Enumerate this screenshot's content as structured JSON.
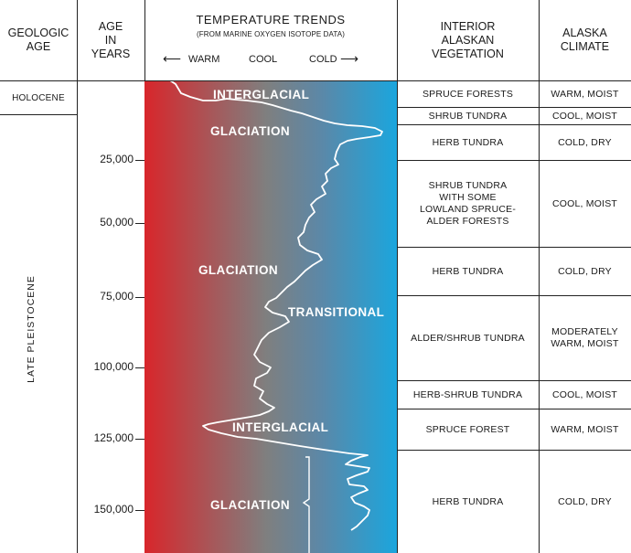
{
  "headers": {
    "geologic_age": [
      "GEOLOGIC",
      "AGE"
    ],
    "age": [
      "AGE",
      "IN",
      "YEARS"
    ],
    "temperature": {
      "title": "TEMPERATURE TRENDS",
      "subtitle": "(FROM MARINE OXYGEN ISOTOPE DATA)",
      "warm": "WARM",
      "cool": "COOL",
      "cold": "COLD",
      "warm_arrow": "⟵",
      "cold_arrow": "⟶"
    },
    "vegetation": [
      "INTERIOR",
      "ALASKAN",
      "VEGETATION"
    ],
    "climate": [
      "ALASKA",
      "CLIMATE"
    ]
  },
  "geologic_ages": {
    "holocene": "HOLOCENE",
    "late_pleistocene": "LATE PLEISTOCENE"
  },
  "age_ticks": [
    {
      "label": "25,000",
      "years": 25000
    },
    {
      "label": "50,000",
      "years": 50000
    },
    {
      "label": "75,000",
      "years": 75000
    },
    {
      "label": "100,000",
      "years": 100000
    },
    {
      "label": "125,000",
      "years": 125000
    },
    {
      "label": "150,000",
      "years": 150000
    }
  ],
  "temperature_bands": {
    "interglacial_top": "INTERGLACIAL",
    "glaciation_1": "GLACIATION",
    "glaciation_2": "GLACIATION",
    "transitional": "TRANSITIONAL",
    "interglacial_mid": "INTERGLACIAL",
    "glaciation_3": "GLACIATION"
  },
  "vegetation": [
    "SPRUCE FORESTS",
    "SHRUB TUNDRA",
    "HERB TUNDRA",
    [
      "SHRUB TUNDRA",
      "WITH SOME",
      "LOWLAND SPRUCE-",
      "ALDER FORESTS"
    ],
    "HERB TUNDRA",
    "ALDER/SHRUB TUNDRA",
    "HERB-SHRUB TUNDRA",
    "SPRUCE FOREST",
    "HERB TUNDRA"
  ],
  "climate": [
    "WARM, MOIST",
    "COOL, MOIST",
    "COLD, DRY",
    "COOL, MOIST",
    "COLD, DRY",
    [
      "MODERATELY",
      "WARM, MOIST"
    ],
    "COOL, MOIST",
    "WARM, MOIST",
    "COLD, DRY"
  ],
  "colors": {
    "warm": "#d8262b",
    "cool": "#7f7f7f",
    "cold": "#1aa6de",
    "curve": "#ffffff",
    "lines": "#222222"
  }
}
